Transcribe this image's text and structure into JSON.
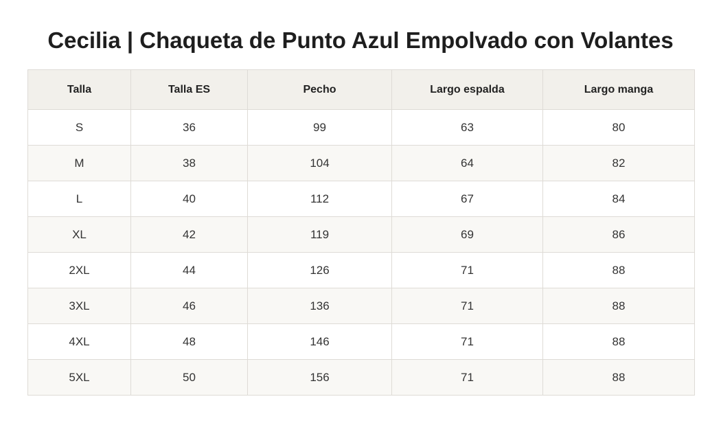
{
  "title": "Cecilia | Chaqueta de Punto Azul Empolvado con Volantes",
  "table": {
    "headers": [
      "Talla",
      "Talla ES",
      "Pecho",
      "Largo espalda",
      "Largo manga"
    ],
    "rows": [
      [
        "S",
        "36",
        "99",
        "63",
        "80"
      ],
      [
        "M",
        "38",
        "104",
        "64",
        "82"
      ],
      [
        "L",
        "40",
        "112",
        "67",
        "84"
      ],
      [
        "XL",
        "42",
        "119",
        "69",
        "86"
      ],
      [
        "2XL",
        "44",
        "126",
        "71",
        "88"
      ],
      [
        "3XL",
        "46",
        "136",
        "71",
        "88"
      ],
      [
        "4XL",
        "48",
        "146",
        "71",
        "88"
      ],
      [
        "5XL",
        "50",
        "156",
        "71",
        "88"
      ]
    ]
  }
}
